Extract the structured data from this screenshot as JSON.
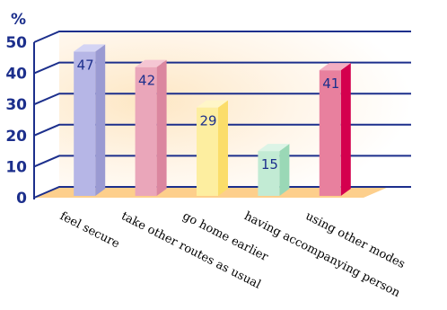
{
  "chart_data": {
    "type": "bar",
    "title": "",
    "unit_label": "%",
    "xlabel": "",
    "ylabel": "",
    "ylim": [
      0,
      50
    ],
    "yticks": [
      "0",
      "10",
      "20",
      "30",
      "40",
      "50"
    ],
    "grid": true,
    "categories": [
      "feel secure",
      "take other routes as usual",
      "go home earlier",
      "having accompanying person",
      "using other modes"
    ],
    "values": [
      47,
      42,
      29,
      15,
      41
    ],
    "value_labels": [
      "47",
      "42",
      "29",
      "15",
      "41"
    ],
    "colors": [
      "#b6b6e6",
      "#eaa6ba",
      "#fdeea0",
      "#c2ebd4",
      "#e8809e"
    ],
    "top_colors": [
      "#d4d4f4",
      "#f5c6d3",
      "#fff6c8",
      "#dcf4e6",
      "#f4aec2"
    ],
    "side_colors": [
      "#9a9ad2",
      "#db869f",
      "#fbdd6a",
      "#9ad8b6",
      "#d4004e"
    ],
    "axis_color": "#1c2f8c",
    "floor_color": "#fdcf8c"
  }
}
